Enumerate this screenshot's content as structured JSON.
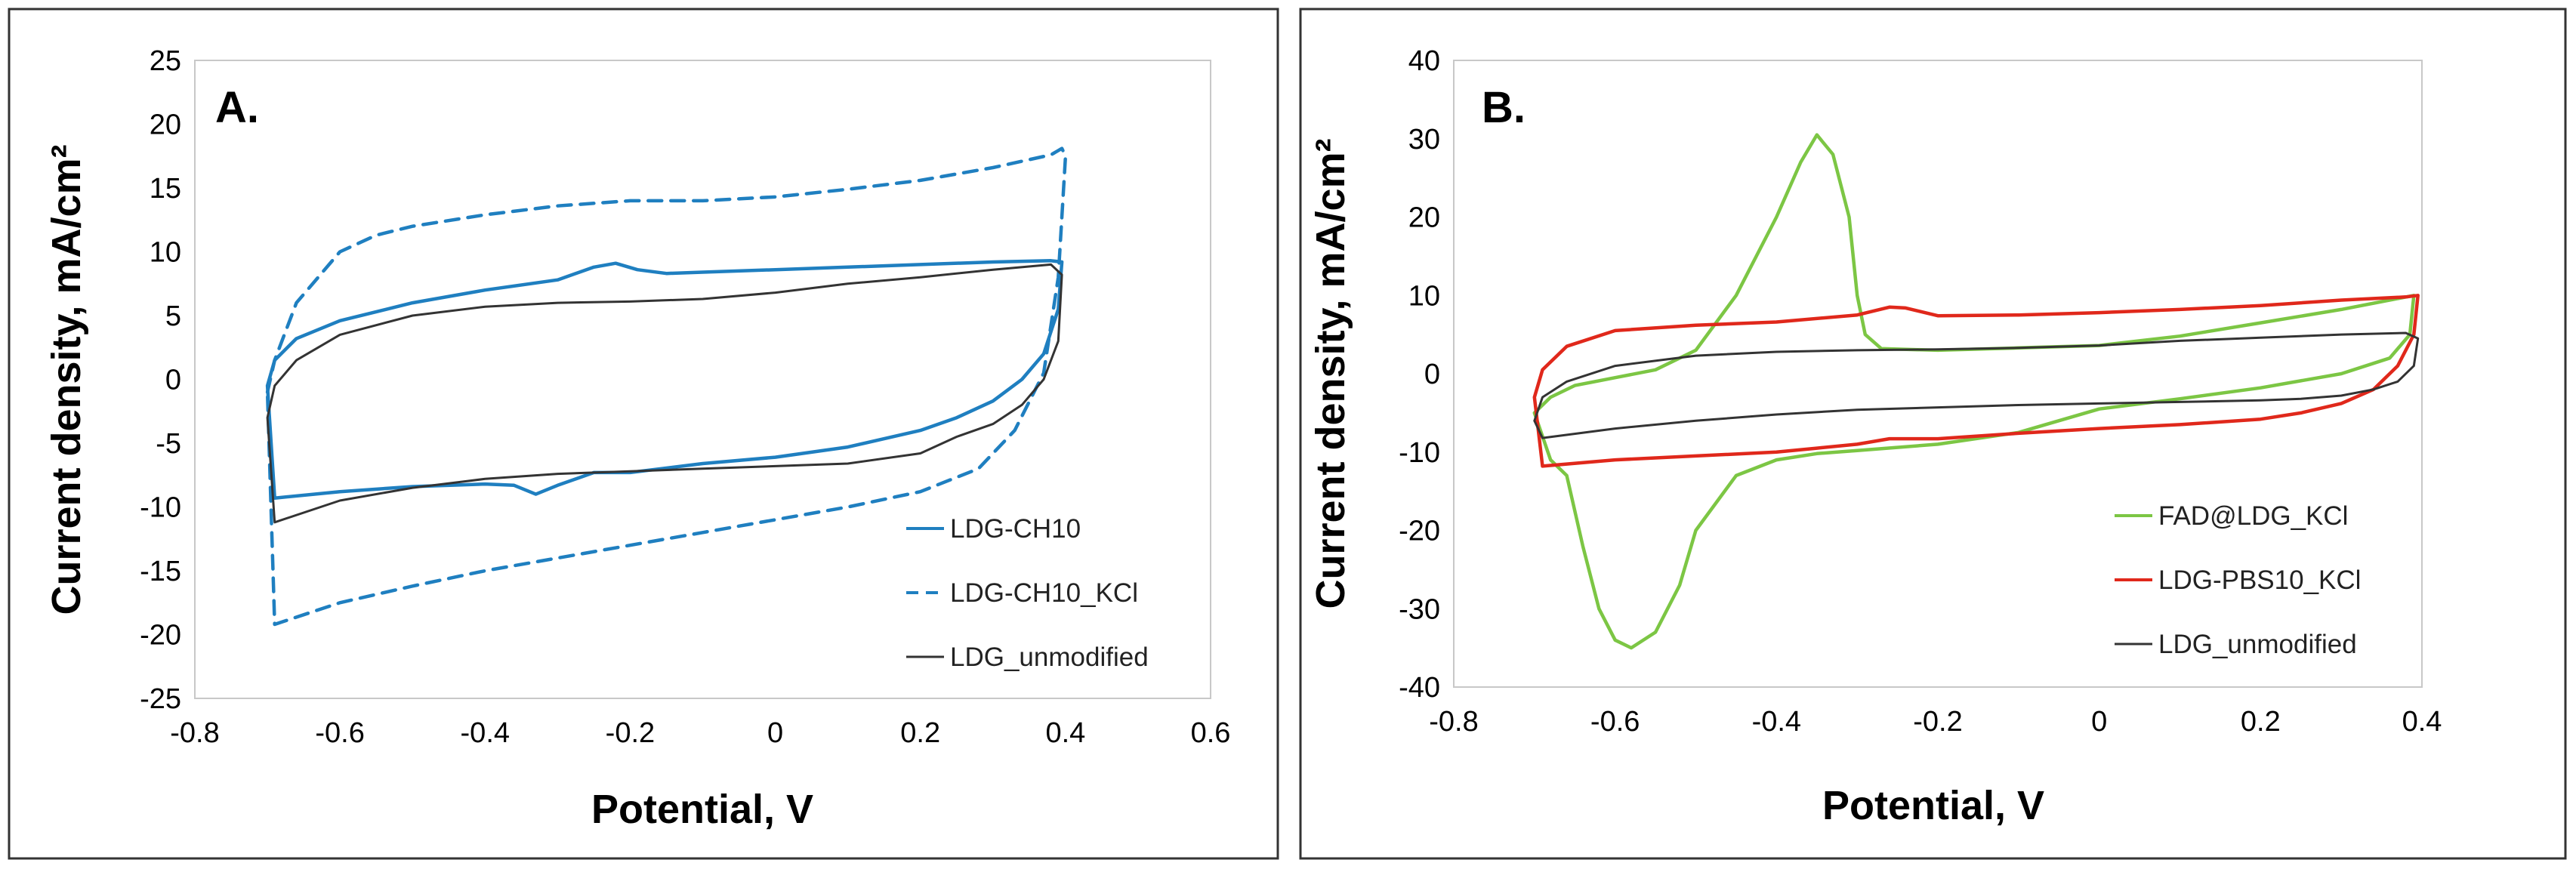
{
  "chart_data": [
    {
      "type": "line",
      "panel_label": "A.",
      "xlabel": "Potential, V",
      "ylabel": "Current density, mA/cm²",
      "xlim": [
        -0.8,
        0.6
      ],
      "ylim": [
        -25,
        25
      ],
      "xticks": [
        -0.8,
        -0.6,
        -0.4,
        -0.2,
        0,
        0.2,
        0.4,
        0.6
      ],
      "xtick_labels": [
        "-0.8",
        "-0.6",
        "-0.4",
        "-0.2",
        "0",
        "0.2",
        "0.4",
        "0.6"
      ],
      "yticks": [
        -25,
        -20,
        -15,
        -10,
        -5,
        0,
        5,
        10,
        15,
        20,
        25
      ],
      "ytick_labels": [
        "-25",
        "-20",
        "-15",
        "-10",
        "-5",
        "0",
        "5",
        "10",
        "15",
        "20",
        "25"
      ],
      "grid": false,
      "legend_position": "bottom-right",
      "series": [
        {
          "name": "LDG-CH10",
          "color": "#1f7fc0",
          "dash": "solid",
          "x": [
            -0.7,
            -0.69,
            -0.66,
            -0.6,
            -0.5,
            -0.4,
            -0.3,
            -0.25,
            -0.22,
            -0.19,
            -0.15,
            -0.1,
            0,
            0.1,
            0.2,
            0.3,
            0.38,
            0.395,
            0.39,
            0.37,
            0.34,
            0.3,
            0.25,
            0.2,
            0.1,
            0,
            -0.1,
            -0.2,
            -0.25,
            -0.3,
            -0.33,
            -0.36,
            -0.4,
            -0.5,
            -0.6,
            -0.69,
            -0.7
          ],
          "y": [
            -0.5,
            1.5,
            3.2,
            4.6,
            6.0,
            7.0,
            7.8,
            8.8,
            9.1,
            8.6,
            8.3,
            8.4,
            8.6,
            8.8,
            9.0,
            9.2,
            9.3,
            9.2,
            5.5,
            2.0,
            0.0,
            -1.7,
            -3.0,
            -4.0,
            -5.3,
            -6.1,
            -6.6,
            -7.3,
            -7.3,
            -8.3,
            -9.0,
            -8.3,
            -8.2,
            -8.4,
            -8.8,
            -9.3,
            -0.5
          ]
        },
        {
          "name": "LDG-CH10_KCl",
          "color": "#1f7fc0",
          "dash": "dashed",
          "x": [
            -0.7,
            -0.69,
            -0.66,
            -0.6,
            -0.55,
            -0.5,
            -0.4,
            -0.3,
            -0.2,
            -0.1,
            0,
            0.1,
            0.2,
            0.3,
            0.38,
            0.395,
            0.4,
            0.39,
            0.37,
            0.33,
            0.28,
            0.2,
            0.1,
            0,
            -0.1,
            -0.2,
            -0.3,
            -0.4,
            -0.5,
            -0.6,
            -0.69,
            -0.7
          ],
          "y": [
            -1.0,
            1.5,
            6.0,
            10.0,
            11.3,
            12.0,
            12.9,
            13.6,
            14.0,
            14.0,
            14.3,
            14.9,
            15.6,
            16.6,
            17.6,
            18.1,
            17.5,
            8.0,
            0.5,
            -4.0,
            -7.0,
            -8.8,
            -10.0,
            -11.0,
            -12.0,
            -13.0,
            -14.0,
            -15.0,
            -16.2,
            -17.5,
            -19.2,
            -1.0
          ]
        },
        {
          "name": "LDG_unmodified",
          "color": "#333333",
          "dash": "solid",
          "x": [
            -0.7,
            -0.69,
            -0.66,
            -0.6,
            -0.5,
            -0.4,
            -0.3,
            -0.2,
            -0.1,
            0,
            0.1,
            0.2,
            0.3,
            0.38,
            0.395,
            0.39,
            0.37,
            0.34,
            0.3,
            0.25,
            0.2,
            0.1,
            0,
            -0.1,
            -0.2,
            -0.3,
            -0.4,
            -0.5,
            -0.6,
            -0.69,
            -0.7
          ],
          "y": [
            -3.0,
            -0.5,
            1.5,
            3.5,
            5.0,
            5.7,
            6.0,
            6.1,
            6.3,
            6.8,
            7.5,
            8.0,
            8.6,
            9.0,
            8.2,
            3.0,
            0.0,
            -2.0,
            -3.5,
            -4.5,
            -5.8,
            -6.6,
            -6.8,
            -7.0,
            -7.2,
            -7.4,
            -7.8,
            -8.5,
            -9.5,
            -11.2,
            -3.0
          ]
        }
      ]
    },
    {
      "type": "line",
      "panel_label": "B.",
      "xlabel": "Potential, V",
      "ylabel": "Current density, mA/cm²",
      "xlim": [
        -0.8,
        0.4
      ],
      "ylim": [
        -40,
        40
      ],
      "xticks": [
        -0.8,
        -0.6,
        -0.4,
        -0.2,
        0,
        0.2,
        0.4
      ],
      "xtick_labels": [
        "-0.8",
        "-0.6",
        "-0.4",
        "-0.2",
        "0",
        "0.2",
        "0.4"
      ],
      "yticks": [
        -40,
        -30,
        -20,
        -10,
        0,
        10,
        20,
        30,
        40
      ],
      "ytick_labels": [
        "-40",
        "-30",
        "-20",
        "-10",
        "0",
        "10",
        "20",
        "30",
        "40"
      ],
      "grid": false,
      "legend_position": "bottom-right",
      "series": [
        {
          "name": "FAD@LDG_KCl",
          "color": "#7cc644",
          "dash": "solid",
          "x": [
            -0.7,
            -0.68,
            -0.65,
            -0.6,
            -0.55,
            -0.5,
            -0.45,
            -0.4,
            -0.37,
            -0.35,
            -0.33,
            -0.31,
            -0.3,
            -0.29,
            -0.27,
            -0.2,
            -0.1,
            0,
            0.1,
            0.2,
            0.3,
            0.39,
            0.385,
            0.36,
            0.3,
            0.2,
            0.1,
            0,
            -0.1,
            -0.2,
            -0.3,
            -0.35,
            -0.4,
            -0.45,
            -0.5,
            -0.52,
            -0.55,
            -0.58,
            -0.6,
            -0.62,
            -0.64,
            -0.66,
            -0.68,
            -0.7
          ],
          "y": [
            -5.0,
            -3.0,
            -1.5,
            -0.5,
            0.5,
            3.0,
            10.0,
            20.0,
            27.0,
            30.5,
            28.0,
            20.0,
            10.0,
            5.0,
            3.2,
            3.0,
            3.3,
            3.6,
            4.8,
            6.5,
            8.2,
            10.0,
            5.0,
            2.0,
            0.0,
            -1.8,
            -3.2,
            -4.5,
            -7.5,
            -9.0,
            -9.8,
            -10.2,
            -11.0,
            -13.0,
            -20.0,
            -27.0,
            -33.0,
            -35.0,
            -34.0,
            -30.0,
            -22.0,
            -13.0,
            -11.0,
            -5.0
          ]
        },
        {
          "name": "LDG-PBS10_KCl",
          "color": "#e0281b",
          "dash": "solid",
          "x": [
            -0.7,
            -0.69,
            -0.66,
            -0.6,
            -0.5,
            -0.4,
            -0.3,
            -0.26,
            -0.24,
            -0.2,
            -0.1,
            0,
            0.1,
            0.2,
            0.3,
            0.38,
            0.395,
            0.39,
            0.37,
            0.34,
            0.3,
            0.25,
            0.2,
            0.1,
            0,
            -0.1,
            -0.2,
            -0.26,
            -0.3,
            -0.35,
            -0.4,
            -0.5,
            -0.6,
            -0.69,
            -0.7
          ],
          "y": [
            -3.0,
            0.5,
            3.5,
            5.5,
            6.2,
            6.6,
            7.5,
            8.5,
            8.4,
            7.4,
            7.5,
            7.8,
            8.2,
            8.7,
            9.4,
            9.8,
            10.0,
            5.0,
            1.0,
            -2.0,
            -3.8,
            -5.0,
            -5.8,
            -6.5,
            -7.0,
            -7.6,
            -8.3,
            -8.3,
            -9.0,
            -9.5,
            -10.0,
            -10.5,
            -11.0,
            -11.8,
            -3.0
          ]
        },
        {
          "name": "LDG_unmodified",
          "color": "#333333",
          "dash": "solid",
          "x": [
            -0.7,
            -0.69,
            -0.66,
            -0.6,
            -0.5,
            -0.4,
            -0.3,
            -0.2,
            -0.1,
            0,
            0.1,
            0.2,
            0.3,
            0.38,
            0.395,
            0.39,
            0.37,
            0.34,
            0.3,
            0.25,
            0.2,
            0.1,
            0,
            -0.1,
            -0.2,
            -0.3,
            -0.4,
            -0.5,
            -0.6,
            -0.69,
            -0.7
          ],
          "y": [
            -6.0,
            -3.0,
            -1.0,
            1.0,
            2.3,
            2.8,
            3.0,
            3.1,
            3.3,
            3.6,
            4.2,
            4.6,
            5.0,
            5.2,
            4.5,
            1.0,
            -1.0,
            -2.0,
            -2.8,
            -3.2,
            -3.4,
            -3.6,
            -3.8,
            -4.0,
            -4.3,
            -4.6,
            -5.2,
            -6.0,
            -7.0,
            -8.2,
            -6.0
          ]
        }
      ]
    }
  ]
}
